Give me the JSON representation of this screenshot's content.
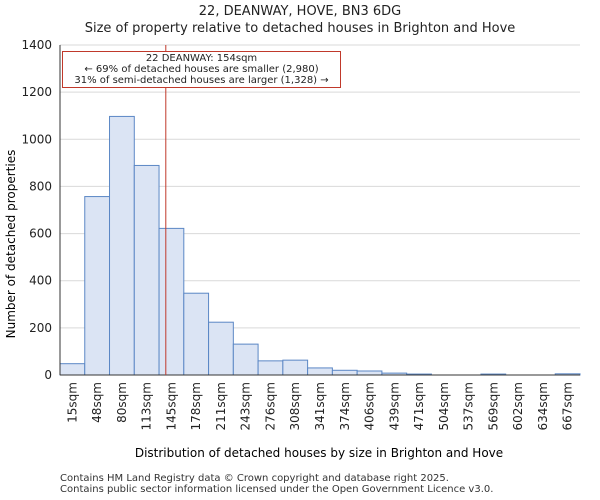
{
  "header": {
    "title": "22, DEANWAY, HOVE, BN3 6DG",
    "subtitle": "Size of property relative to detached houses in Brighton and Hove"
  },
  "chart_data": {
    "type": "bar",
    "title": "22, DEANWAY, HOVE, BN3 6DG",
    "subtitle": "Size of property relative to detached houses in Brighton and Hove",
    "xlabel": "Distribution of detached houses by size in Brighton and Hove",
    "ylabel": "Number of detached properties",
    "ylim": [
      0,
      1400
    ],
    "yticks": [
      0,
      200,
      400,
      600,
      800,
      1000,
      1200,
      1400
    ],
    "categories": [
      "15sqm",
      "48sqm",
      "80sqm",
      "113sqm",
      "145sqm",
      "178sqm",
      "211sqm",
      "243sqm",
      "276sqm",
      "308sqm",
      "341sqm",
      "374sqm",
      "406sqm",
      "439sqm",
      "471sqm",
      "504sqm",
      "537sqm",
      "569sqm",
      "602sqm",
      "634sqm",
      "667sqm"
    ],
    "values": [
      48,
      757,
      1097,
      889,
      622,
      347,
      224,
      131,
      60,
      63,
      30,
      20,
      17,
      8,
      4,
      0,
      0,
      4,
      0,
      0,
      5
    ],
    "marker_value_sqm": 154,
    "bar_color": "#dbe4f4",
    "bar_edge_color": "#5b87c5",
    "marker_color": "#c0392b",
    "grid": true,
    "annotation": {
      "line1": "22 DEANWAY: 154sqm",
      "line2": "← 69% of detached houses are smaller (2,980)",
      "line3": "31% of semi-detached houses are larger (1,328) →"
    }
  },
  "footer": {
    "line1": "Contains HM Land Registry data © Crown copyright and database right 2025.",
    "line2": "Contains public sector information licensed under the Open Government Licence v3.0."
  }
}
